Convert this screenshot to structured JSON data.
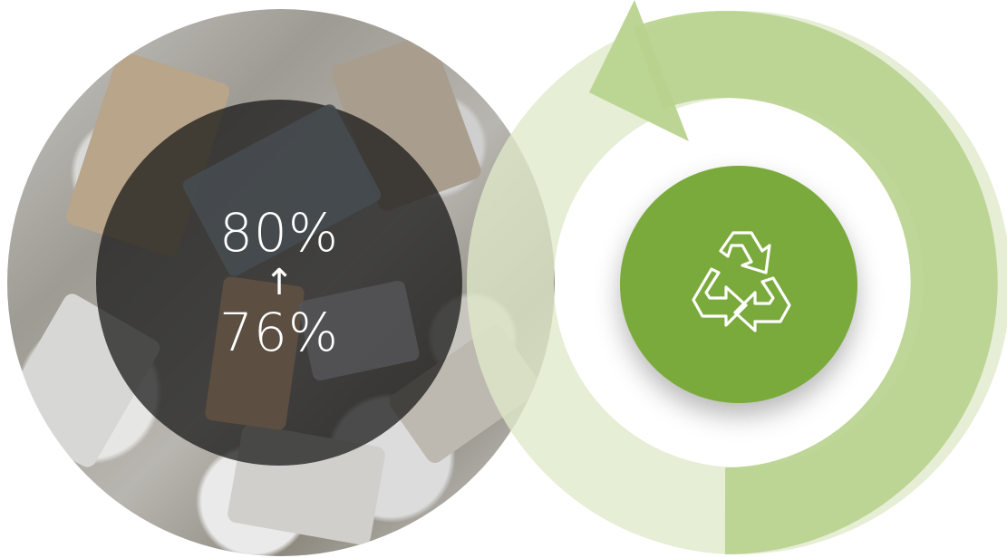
{
  "stats": {
    "top_value": "80%",
    "arrow": "↑",
    "bottom_value": "76%"
  },
  "icons": {
    "center": "recycle-icon",
    "cycle": "cycle-arrow-icon"
  },
  "colors": {
    "ring_light": "#e3ecd0",
    "ring_medium": "#bfd69a",
    "center_green": "#7aaa3c",
    "overlay_dark": "#141414"
  }
}
